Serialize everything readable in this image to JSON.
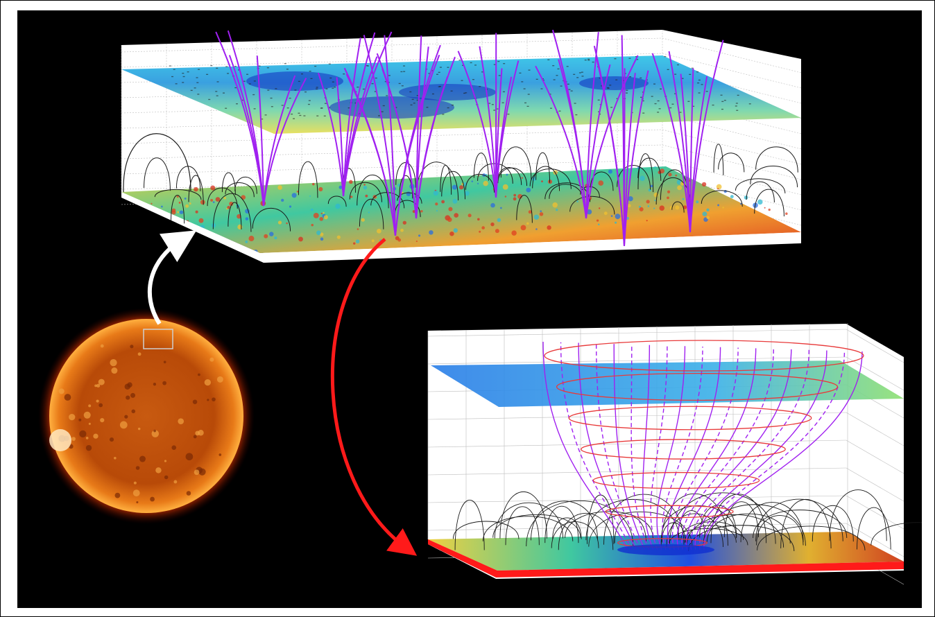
{
  "figure": {
    "background_color": "#000000",
    "frame_color": "#000000",
    "panels": [
      {
        "id": "sun",
        "description_icon": "sun-disk-icon",
        "highlight_box_color": "#cfcfcf"
      },
      {
        "id": "region-volume",
        "description_icon": "magnetic-field-volume-icon"
      },
      {
        "id": "funnel-zoom",
        "description_icon": "magnetic-funnel-icon"
      }
    ],
    "arrows": [
      {
        "id": "sun-to-region",
        "color": "#ffffff"
      },
      {
        "id": "region-to-funnel",
        "color": "#ff1a1a"
      }
    ],
    "colors": {
      "open_field_lines": "#a020f0",
      "closed_field_lines": "#1a1a1a",
      "funnel_frame": "#e83a3a",
      "grid": "#bdbdbd"
    }
  }
}
